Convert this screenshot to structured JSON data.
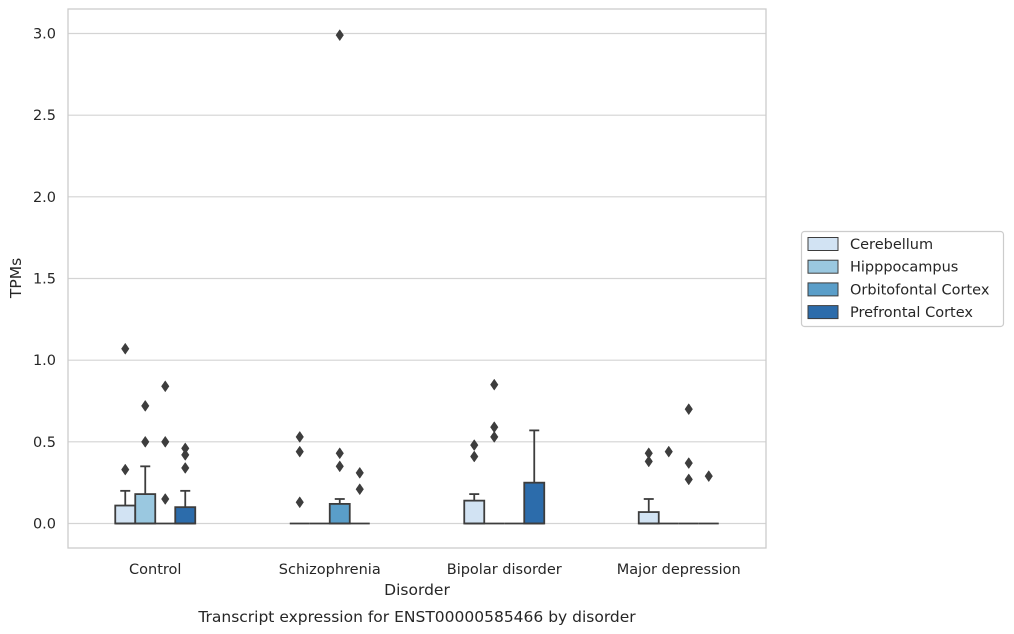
{
  "chart_data": {
    "type": "box",
    "title": "Transcript expression for ENST00000585466 by disorder",
    "xlabel": "Disorder",
    "ylabel": "TPMs",
    "ylim": [
      -0.15,
      3.15
    ],
    "yticks": [
      0.0,
      0.5,
      1.0,
      1.5,
      2.0,
      2.5,
      3.0
    ],
    "ytick_labels": [
      "0.0",
      "0.5",
      "1.0",
      "1.5",
      "2.0",
      "2.5",
      "3.0"
    ],
    "grid": "horizontal",
    "legend_position": "right",
    "categories": [
      "Control",
      "Schizophrenia",
      "Bipolar disorder",
      "Major depression"
    ],
    "series": [
      {
        "name": "Cerebellum",
        "color": "#d2e3f3",
        "boxes": [
          {
            "q1": 0.0,
            "median": 0.0,
            "q3": 0.11,
            "whisker_low": 0.0,
            "whisker_high": 0.2,
            "outliers": [
              0.33,
              1.07
            ]
          },
          {
            "q1": 0.0,
            "median": 0.0,
            "q3": 0.0,
            "whisker_low": 0.0,
            "whisker_high": 0.0,
            "outliers": [
              0.13,
              0.44,
              0.53
            ]
          },
          {
            "q1": 0.0,
            "median": 0.0,
            "q3": 0.14,
            "whisker_low": 0.0,
            "whisker_high": 0.18,
            "outliers": [
              0.41,
              0.48
            ]
          },
          {
            "q1": 0.0,
            "median": 0.0,
            "q3": 0.07,
            "whisker_low": 0.0,
            "whisker_high": 0.15,
            "outliers": [
              0.38,
              0.43
            ]
          }
        ]
      },
      {
        "name": "Hipppocampus",
        "color": "#9ac8e0",
        "boxes": [
          {
            "q1": 0.0,
            "median": 0.0,
            "q3": 0.18,
            "whisker_low": 0.0,
            "whisker_high": 0.35,
            "outliers": [
              0.5,
              0.72
            ]
          },
          {
            "q1": 0.0,
            "median": 0.0,
            "q3": 0.0,
            "whisker_low": 0.0,
            "whisker_high": 0.0,
            "outliers": []
          },
          {
            "q1": 0.0,
            "median": 0.0,
            "q3": 0.0,
            "whisker_low": 0.0,
            "whisker_high": 0.0,
            "outliers": [
              0.53,
              0.59,
              0.85
            ]
          },
          {
            "q1": 0.0,
            "median": 0.0,
            "q3": 0.0,
            "whisker_low": 0.0,
            "whisker_high": 0.0,
            "outliers": [
              0.44
            ]
          }
        ]
      },
      {
        "name": "Orbitofontal Cortex",
        "color": "#5a9ec9",
        "boxes": [
          {
            "q1": 0.0,
            "median": 0.0,
            "q3": 0.0,
            "whisker_low": 0.0,
            "whisker_high": 0.0,
            "outliers": [
              0.15,
              0.5,
              0.84
            ]
          },
          {
            "q1": 0.0,
            "median": 0.0,
            "q3": 0.12,
            "whisker_low": 0.0,
            "whisker_high": 0.15,
            "outliers": [
              0.35,
              0.43,
              2.99
            ]
          },
          {
            "q1": 0.0,
            "median": 0.0,
            "q3": 0.0,
            "whisker_low": 0.0,
            "whisker_high": 0.0,
            "outliers": []
          },
          {
            "q1": 0.0,
            "median": 0.0,
            "q3": 0.0,
            "whisker_low": 0.0,
            "whisker_high": 0.0,
            "outliers": [
              0.27,
              0.37,
              0.7
            ]
          }
        ]
      },
      {
        "name": "Prefrontal Cortex",
        "color": "#2c6cab",
        "boxes": [
          {
            "q1": 0.0,
            "median": 0.0,
            "q3": 0.1,
            "whisker_low": 0.0,
            "whisker_high": 0.2,
            "outliers": [
              0.34,
              0.42,
              0.46
            ]
          },
          {
            "q1": 0.0,
            "median": 0.0,
            "q3": 0.0,
            "whisker_low": 0.0,
            "whisker_high": 0.0,
            "outliers": [
              0.21,
              0.31
            ]
          },
          {
            "q1": 0.0,
            "median": 0.0,
            "q3": 0.25,
            "whisker_low": 0.0,
            "whisker_high": 0.57,
            "outliers": []
          },
          {
            "q1": 0.0,
            "median": 0.0,
            "q3": 0.0,
            "whisker_low": 0.0,
            "whisker_high": 0.0,
            "outliers": [
              0.29
            ]
          }
        ]
      }
    ]
  }
}
